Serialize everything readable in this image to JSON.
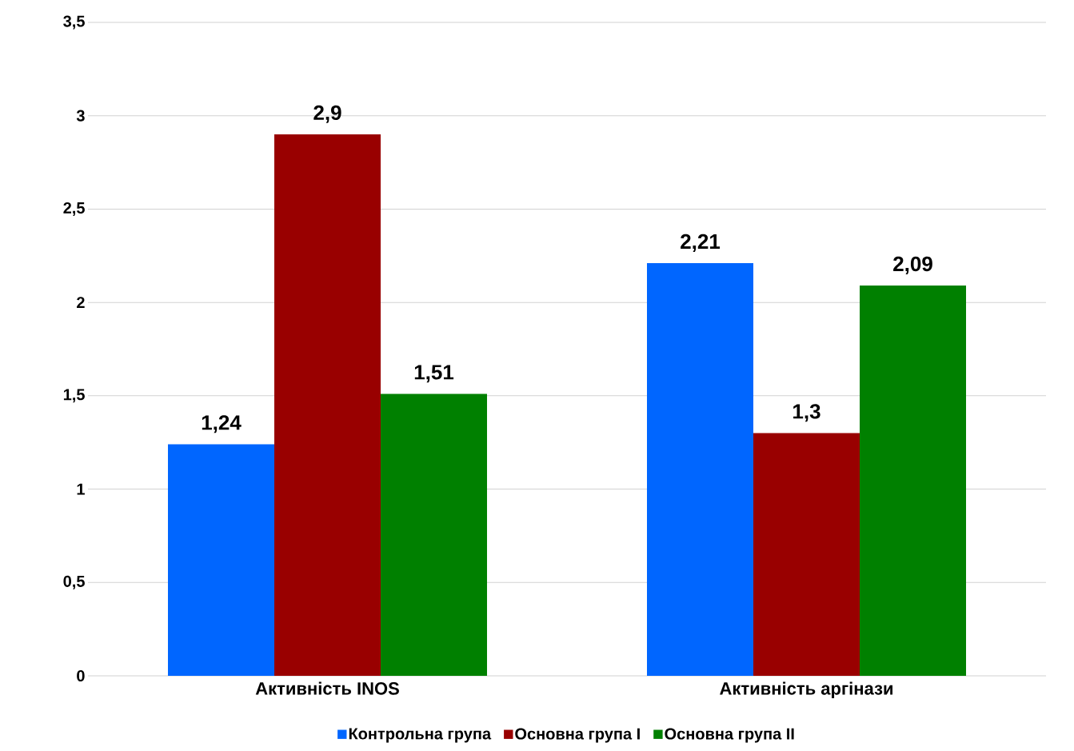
{
  "chart_data": {
    "type": "bar",
    "categories": [
      "Активність INOS",
      "Активність аргінази"
    ],
    "series": [
      {
        "name": "Контрольна група",
        "color": "#0066ff",
        "values": [
          1.24,
          2.21
        ],
        "value_labels": [
          "1,24",
          "2,21"
        ]
      },
      {
        "name": "Основна група I",
        "color": "#990000",
        "values": [
          2.9,
          1.3
        ],
        "value_labels": [
          "2,9",
          "1,3"
        ]
      },
      {
        "name": "Основна група II",
        "color": "#008000",
        "values": [
          1.51,
          2.09
        ],
        "value_labels": [
          "1,51",
          "2,09"
        ]
      }
    ],
    "ylim": [
      0,
      3.5
    ],
    "yticks": [
      0,
      {
        "value": 0.5,
        "label": "0,5"
      },
      1,
      {
        "value": 1.5,
        "label": "1,5"
      },
      2,
      {
        "value": 2.5,
        "label": "2,5"
      },
      3,
      {
        "value": 3.5,
        "label": "3,5"
      }
    ],
    "grid": "y",
    "legend": "bottom"
  }
}
